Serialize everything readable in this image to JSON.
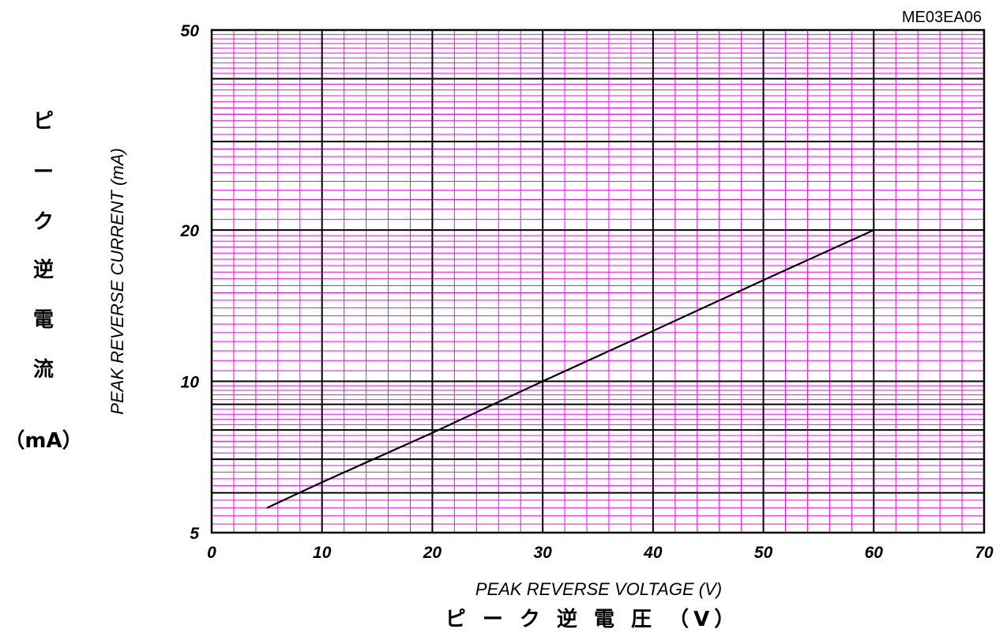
{
  "chart_code": "ME03EA06",
  "chart_data": {
    "type": "line",
    "xlabel": "PEAK REVERSE VOLTAGE (V)",
    "xlabel_jp": "ピ ー ク 逆 電 圧 （V）",
    "ylabel": "PEAK REVERSE CURRENT (mA)",
    "ylabel_jp": [
      "ピ",
      "ー",
      "ク",
      "逆",
      "電",
      "流",
      "（mA）"
    ],
    "xlim": [
      0,
      70
    ],
    "ylim": [
      5,
      50
    ],
    "y_scale": "log",
    "grid": true,
    "x_ticks": [
      "0",
      "10",
      "20",
      "30",
      "40",
      "50",
      "60",
      "70"
    ],
    "y_ticks": [
      "5",
      "10",
      "20",
      "50"
    ],
    "series": [
      {
        "x": [
          5,
          10,
          20,
          30,
          40,
          50,
          60
        ],
        "y": [
          5.6,
          6.3,
          7.9,
          10,
          12.6,
          15.9,
          20
        ]
      }
    ],
    "colors": {
      "minor_grid": "#ff00ff",
      "major_grid": "#000000",
      "line": "#000000"
    }
  }
}
